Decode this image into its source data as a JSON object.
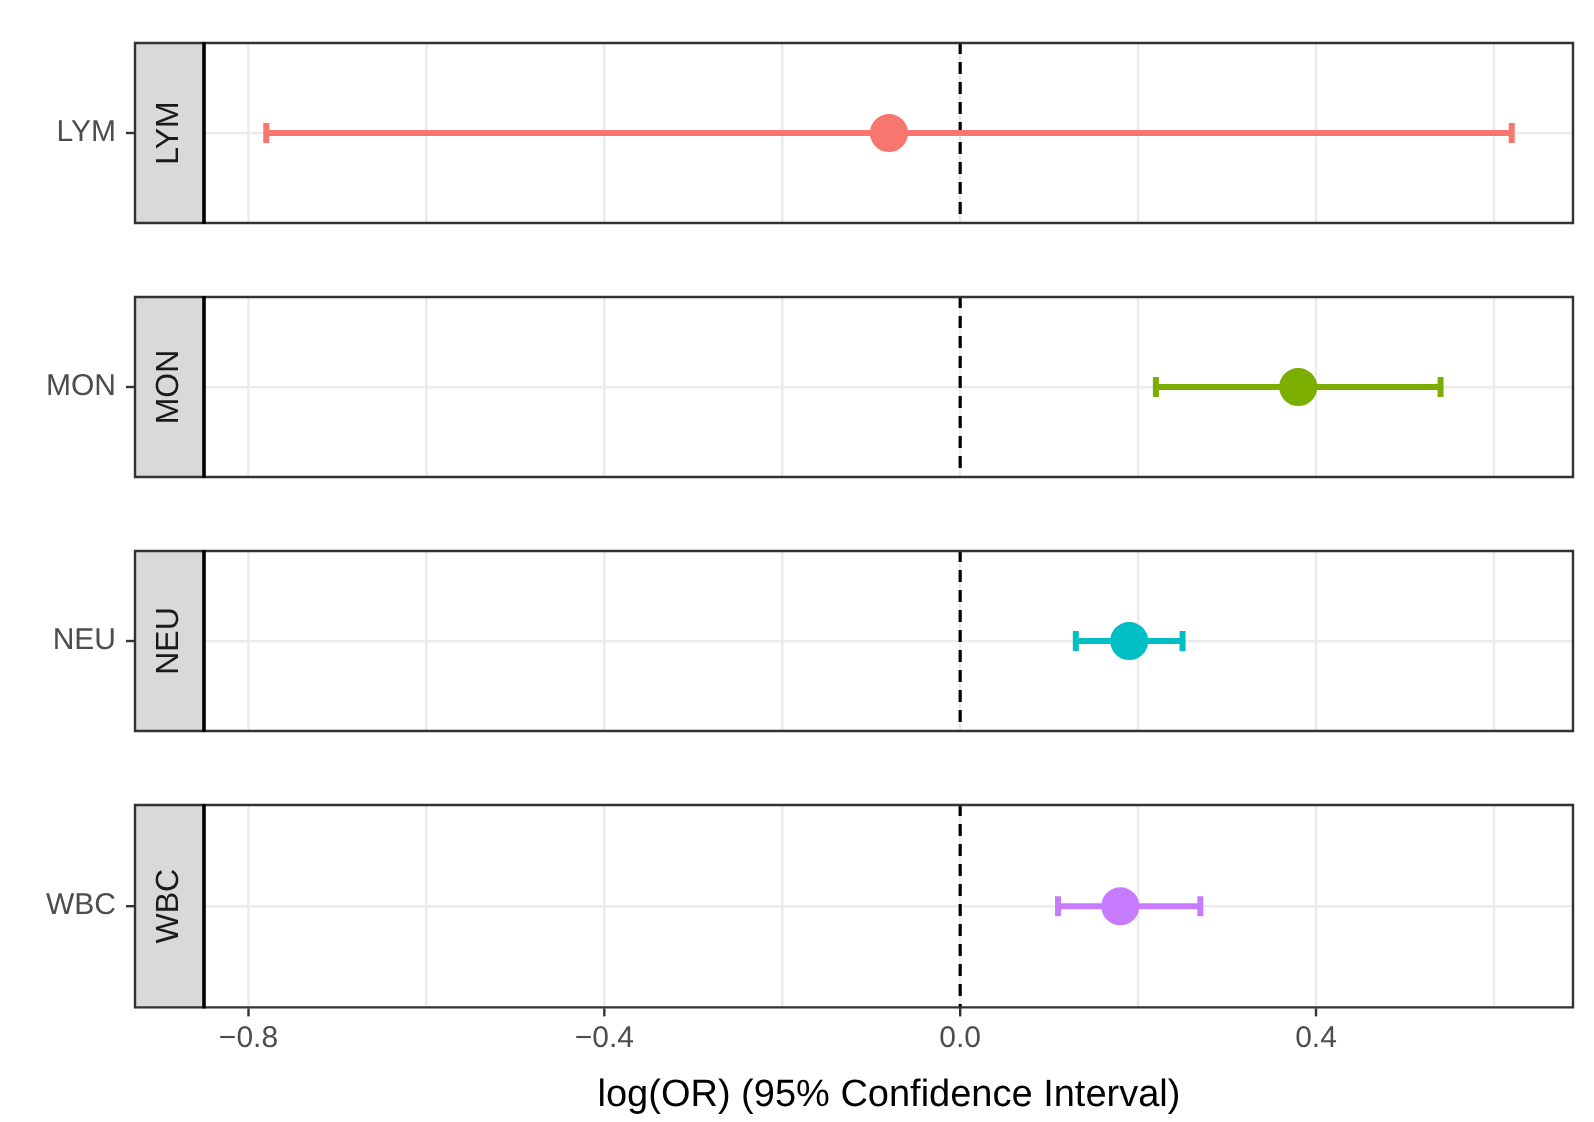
{
  "chart_data": [
    {
      "type": "scatter",
      "orientation": "horizontal",
      "title": "LYM",
      "categories": [
        "LYM"
      ],
      "values": [
        -0.08
      ],
      "errors": [
        [
          -0.78,
          0.62
        ]
      ],
      "colors": [
        "#f8766d"
      ],
      "marker": "circle",
      "xlim": [
        -0.85,
        0.69
      ],
      "xticks": [
        -0.8,
        -0.6,
        -0.4,
        -0.2,
        0,
        0.2,
        0.4,
        0.6
      ],
      "grid": true,
      "tick_labels": "y",
      "ref_lines": [
        {
          "axis": "x",
          "value": 0,
          "color": "#000000",
          "line_style": "dashed"
        }
      ]
    },
    {
      "type": "scatter",
      "orientation": "horizontal",
      "title": "MON",
      "categories": [
        "MON"
      ],
      "values": [
        0.38
      ],
      "errors": [
        [
          0.22,
          0.54
        ]
      ],
      "colors": [
        "#7cae00"
      ],
      "marker": "circle",
      "xlim": [
        -0.85,
        0.69
      ],
      "xticks": [
        -0.8,
        -0.6,
        -0.4,
        -0.2,
        0,
        0.2,
        0.4,
        0.6
      ],
      "grid": true,
      "tick_labels": "y",
      "ref_lines": [
        {
          "axis": "x",
          "value": 0,
          "color": "#000000",
          "line_style": "dashed"
        }
      ]
    },
    {
      "type": "scatter",
      "orientation": "horizontal",
      "title": "NEU",
      "categories": [
        "NEU"
      ],
      "values": [
        0.19
      ],
      "errors": [
        [
          0.13,
          0.25
        ]
      ],
      "colors": [
        "#00bfc4"
      ],
      "marker": "circle",
      "xlim": [
        -0.85,
        0.69
      ],
      "xticks": [
        -0.8,
        -0.6,
        -0.4,
        -0.2,
        0,
        0.2,
        0.4,
        0.6
      ],
      "grid": true,
      "tick_labels": "y",
      "ref_lines": [
        {
          "axis": "x",
          "value": 0,
          "color": "#000000",
          "line_style": "dashed"
        }
      ]
    },
    {
      "type": "scatter",
      "orientation": "horizontal",
      "title": "WBC",
      "categories": [
        "WBC"
      ],
      "values": [
        0.18
      ],
      "errors": [
        [
          0.11,
          0.27
        ]
      ],
      "colors": [
        "#c77cff"
      ],
      "marker": "circle",
      "xlabel": "log(OR) (95% Confidence Interval)",
      "xlim": [
        -0.85,
        0.69
      ],
      "xticks": [
        {
          "value": -0.8,
          "label": "−0.8"
        },
        {
          "value": -0.6,
          "label": null
        },
        {
          "value": -0.4,
          "label": "−0.4"
        },
        {
          "value": -0.2,
          "label": null
        },
        {
          "value": 0,
          "label": "0.0"
        },
        {
          "value": 0.2,
          "label": null
        },
        {
          "value": 0.4,
          "label": "0.4"
        },
        {
          "value": 0.6,
          "label": null
        }
      ],
      "grid": true,
      "ref_lines": [
        {
          "axis": "x",
          "value": 0,
          "color": "#000000",
          "line_style": "dashed"
        }
      ]
    }
  ]
}
